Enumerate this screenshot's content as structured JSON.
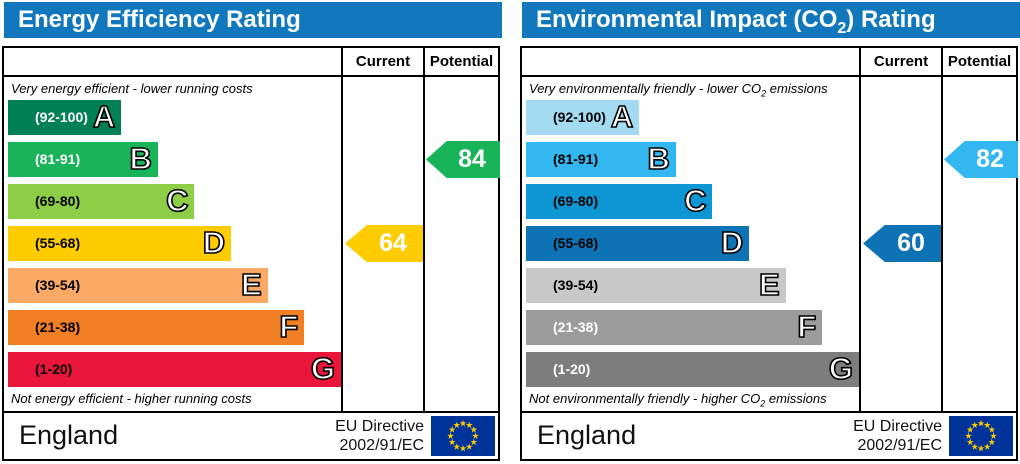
{
  "panels": [
    {
      "title": {
        "pre": "Energy Efficiency Rating",
        "sub": "",
        "post": ""
      },
      "columns": {
        "current": "Current",
        "potential": "Potential"
      },
      "caption_top": {
        "pre": "Very energy efficient - lower running costs",
        "sub": "",
        "post": ""
      },
      "caption_bottom": {
        "pre": "Not energy efficient - higher running costs",
        "sub": "",
        "post": ""
      },
      "footer": {
        "region": "England",
        "directive_line1": "EU Directive",
        "directive_line2": "2002/91/EC",
        "flag_icon": "eu-flag"
      }
    },
    {
      "title": {
        "pre": "Environmental Impact (CO",
        "sub": "2",
        "post": ") Rating"
      },
      "columns": {
        "current": "Current",
        "potential": "Potential"
      },
      "caption_top": {
        "pre": "Very environmentally friendly - lower CO",
        "sub": "2",
        "post": " emissions"
      },
      "caption_bottom": {
        "pre": "Not environmentally friendly - higher CO",
        "sub": "2",
        "post": " emissions"
      },
      "footer": {
        "region": "England",
        "directive_line1": "EU Directive",
        "directive_line2": "2002/91/EC",
        "flag_icon": "eu-flag"
      }
    }
  ],
  "chart_data": [
    {
      "type": "bar",
      "title": "Energy Efficiency Rating",
      "legend": [
        "Current",
        "Potential"
      ],
      "bands": [
        {
          "letter": "A",
          "range": "(92-100)",
          "min": 92,
          "max": 100,
          "width_pct": 34,
          "color": "#008054",
          "label_color": "#ffffff"
        },
        {
          "letter": "B",
          "range": "(81-91)",
          "min": 81,
          "max": 91,
          "width_pct": 45,
          "color": "#19b459",
          "label_color": "#ffffff"
        },
        {
          "letter": "C",
          "range": "(69-80)",
          "min": 69,
          "max": 80,
          "width_pct": 56,
          "color": "#8dce46",
          "label_color": "#000000"
        },
        {
          "letter": "D",
          "range": "(55-68)",
          "min": 55,
          "max": 68,
          "width_pct": 67,
          "color": "#ffcc00",
          "label_color": "#000000"
        },
        {
          "letter": "E",
          "range": "(39-54)",
          "min": 39,
          "max": 54,
          "width_pct": 78,
          "color": "#fbaa65",
          "label_color": "#000000"
        },
        {
          "letter": "F",
          "range": "(21-38)",
          "min": 21,
          "max": 38,
          "width_pct": 89,
          "color": "#f08023",
          "label_color": "#000000"
        },
        {
          "letter": "G",
          "range": "(1-20)",
          "min": 1,
          "max": 20,
          "width_pct": 100,
          "color": "#e9153b",
          "label_color": "#000000"
        }
      ],
      "current": {
        "label": "64",
        "value": 64,
        "band": "D"
      },
      "potential": {
        "label": "84",
        "value": 84,
        "band": "B"
      }
    },
    {
      "type": "bar",
      "title": "Environmental Impact (CO2) Rating",
      "legend": [
        "Current",
        "Potential"
      ],
      "bands": [
        {
          "letter": "A",
          "range": "(92-100)",
          "min": 92,
          "max": 100,
          "width_pct": 34,
          "color": "#a3dbf3",
          "label_color": "#000000"
        },
        {
          "letter": "B",
          "range": "(81-91)",
          "min": 81,
          "max": 91,
          "width_pct": 45,
          "color": "#33b7f0",
          "label_color": "#000000"
        },
        {
          "letter": "C",
          "range": "(69-80)",
          "min": 69,
          "max": 80,
          "width_pct": 56,
          "color": "#0c96d4",
          "label_color": "#000000"
        },
        {
          "letter": "D",
          "range": "(55-68)",
          "min": 55,
          "max": 68,
          "width_pct": 67,
          "color": "#0d73b5",
          "label_color": "#000000"
        },
        {
          "letter": "E",
          "range": "(39-54)",
          "min": 39,
          "max": 54,
          "width_pct": 78,
          "color": "#c8c8c8",
          "label_color": "#000000"
        },
        {
          "letter": "F",
          "range": "(21-38)",
          "min": 21,
          "max": 38,
          "width_pct": 89,
          "color": "#9c9c9c",
          "label_color": "#ffffff"
        },
        {
          "letter": "G",
          "range": "(1-20)",
          "min": 1,
          "max": 20,
          "width_pct": 100,
          "color": "#7d7d7d",
          "label_color": "#ffffff"
        }
      ],
      "current": {
        "label": "60",
        "value": 60,
        "band": "D"
      },
      "potential": {
        "label": "82",
        "value": 82,
        "band": "B"
      }
    }
  ],
  "colors": {
    "header_bg": "#1278be",
    "header_text": "#ffffff",
    "border": "#000000",
    "eu_flag_bg": "#003399",
    "eu_flag_stars": "#ffcc00"
  }
}
